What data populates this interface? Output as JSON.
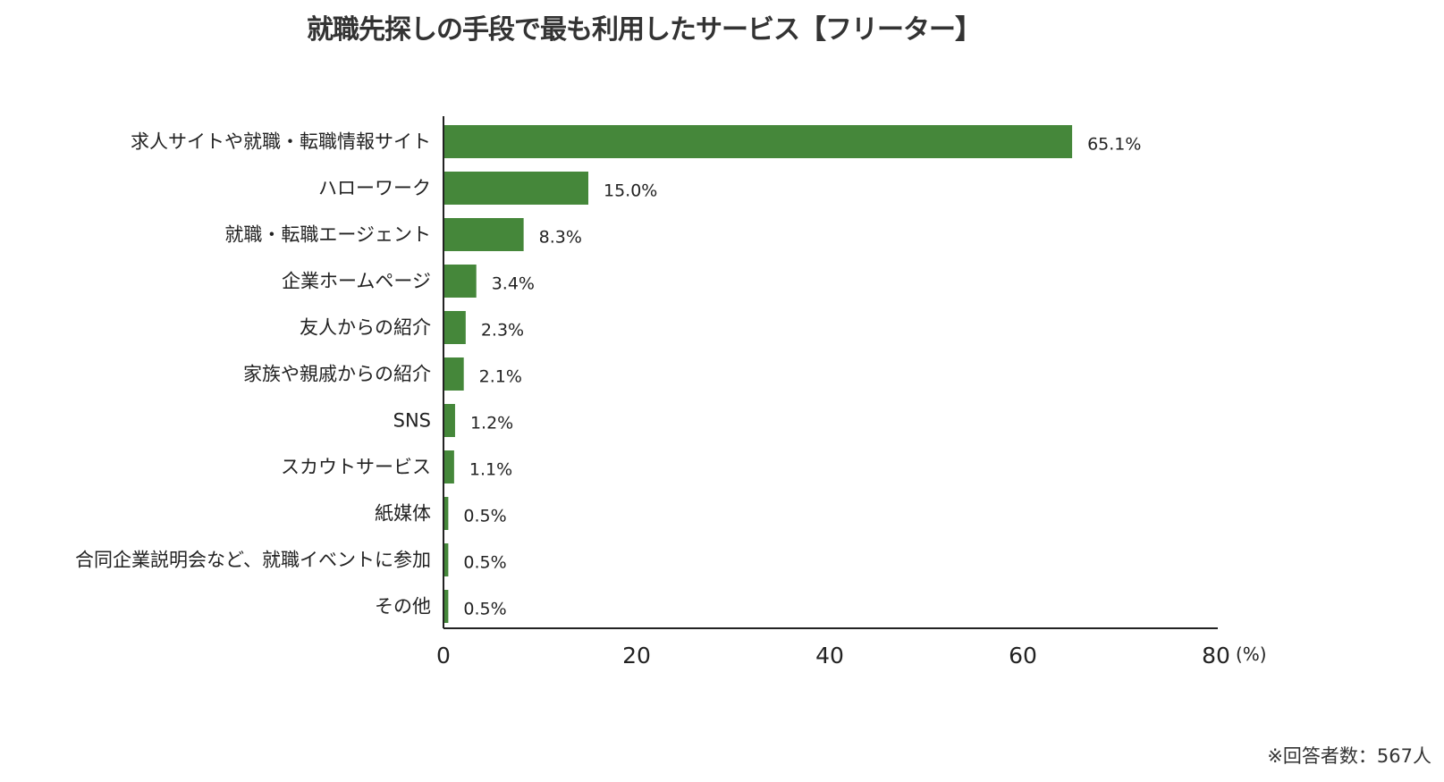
{
  "chart_data": {
    "type": "bar",
    "orientation": "horizontal",
    "title": "就職先探しの手段で最も利用したサービス【フリーター】",
    "categories": [
      "求人サイトや就職・転職情報サイト",
      "ハローワーク",
      "就職・転職エージェント",
      "企業ホームページ",
      "友人からの紹介",
      "家族や親戚からの紹介",
      "SNS",
      "スカウトサービス",
      "紙媒体",
      "合同企業説明会など、就職イベントに参加",
      "その他"
    ],
    "values": [
      65.1,
      15.0,
      8.3,
      3.4,
      2.3,
      2.1,
      1.2,
      1.1,
      0.5,
      0.5,
      0.5
    ],
    "value_labels": [
      "65.1%",
      "15.0%",
      "8.3%",
      "3.4%",
      "2.3%",
      "2.1%",
      "1.2%",
      "1.1%",
      "0.5%",
      "0.5%",
      "0.5%"
    ],
    "xlim": [
      0,
      80
    ],
    "xticks": [
      "0",
      "20",
      "40",
      "60",
      "80"
    ],
    "xunit": "(%)",
    "grid": false,
    "bar_color": "#45873a",
    "note": "※回答者数：567人"
  }
}
